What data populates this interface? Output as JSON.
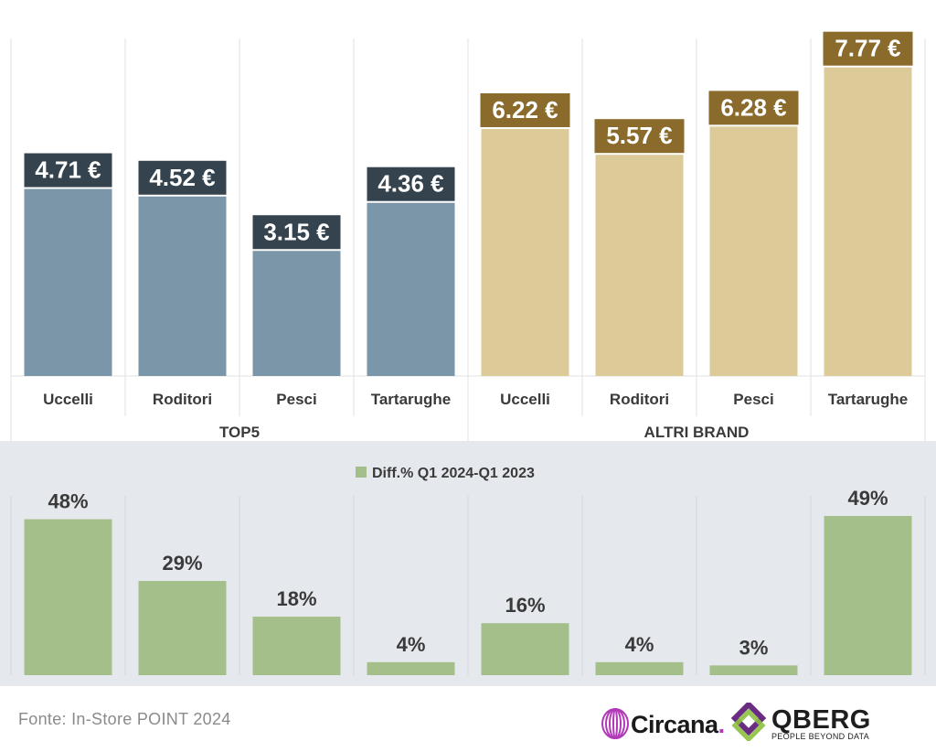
{
  "colors": {
    "top5_bar": "#7b96a8",
    "top5_label_bg": "#34434e",
    "altri_bar": "#dccb98",
    "altri_label_bg": "#8a6b2b",
    "diff_bar": "#a5bf8b",
    "diff_panel_bg": "#e5e8ec",
    "grid": "#e2e2e2",
    "label_text": "#ffffff",
    "axis_text": "#3a3a3a"
  },
  "chart_data": [
    {
      "type": "bar",
      "categories": [
        "Uccelli",
        "Roditori",
        "Pesci",
        "Tartarughe",
        "Uccelli",
        "Roditori",
        "Pesci",
        "Tartarughe"
      ],
      "groups": [
        {
          "name": "TOP5",
          "start": 0,
          "count": 4
        },
        {
          "name": "ALTRI BRAND",
          "start": 4,
          "count": 4
        }
      ],
      "values": [
        4.71,
        4.52,
        3.15,
        4.36,
        6.22,
        5.57,
        6.28,
        7.77
      ],
      "data_labels": [
        "4.71 €",
        "4.52 €",
        "3.15 €",
        "4.36 €",
        "6.22 €",
        "5.57 €",
        "6.28 €",
        "7.77 €"
      ],
      "ylim": [
        0,
        8.5
      ],
      "grid": false
    },
    {
      "type": "bar",
      "legend": "Diff.% Q1 2024-Q1 2023",
      "legend_position": "top-center",
      "values": [
        48,
        29,
        18,
        4,
        16,
        4,
        3,
        49
      ],
      "data_labels": [
        "48%",
        "29%",
        "18%",
        "4%",
        "16%",
        "4%",
        "3%",
        "49%"
      ],
      "ylim": [
        0,
        60
      ]
    }
  ],
  "footer": {
    "source": "Fonte: In-Store POINT 2024",
    "logo_circana": "Circana",
    "logo_circana_dot": ".",
    "logo_qberg": "QBERG",
    "logo_qberg_tagline": "PEOPLE BEYOND DATA"
  }
}
